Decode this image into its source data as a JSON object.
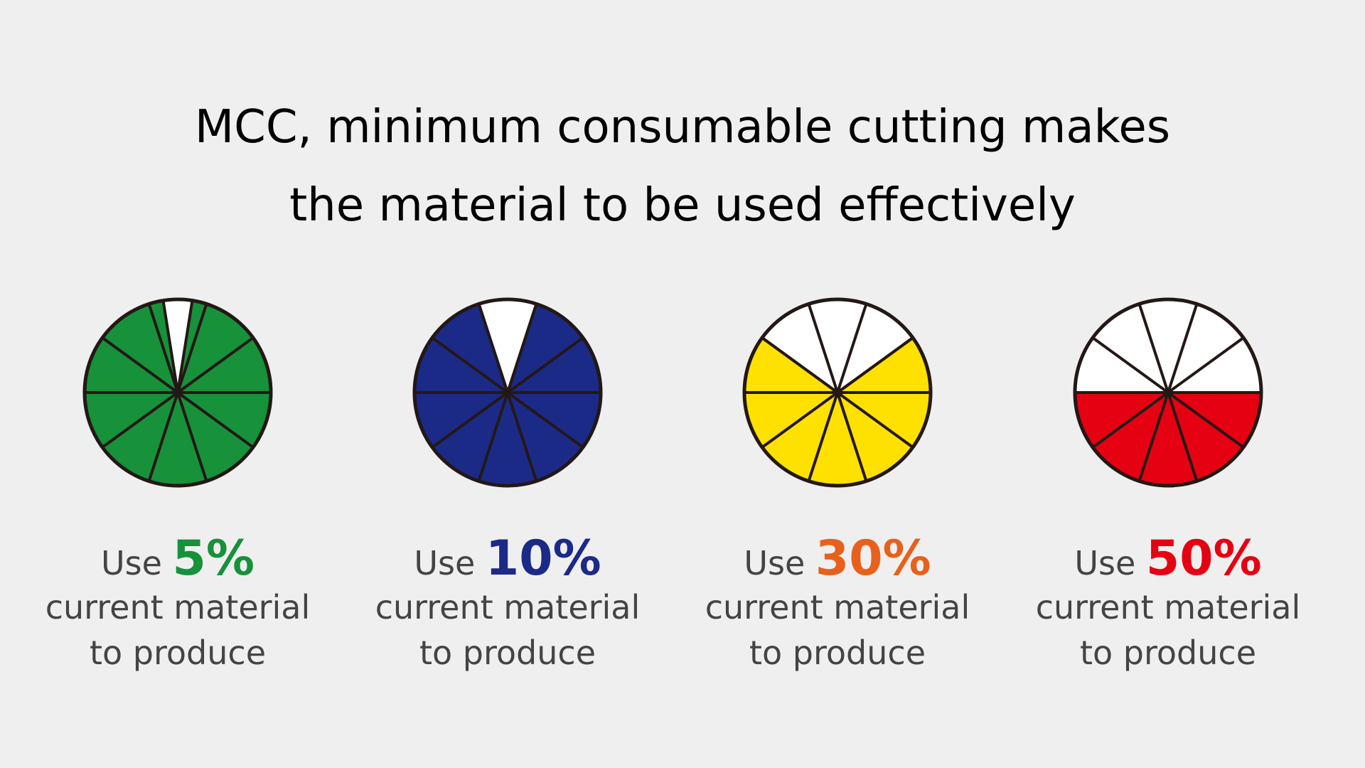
{
  "title": [
    "MCC, minimum consumable cutting makes",
    "the material to be used effectively"
  ],
  "items": [
    {
      "prefix": "Use",
      "value": 5,
      "value_label": "5%",
      "lines": [
        "current material",
        "to produce"
      ],
      "fill": "#17913a",
      "label_color": "#17913a"
    },
    {
      "prefix": "Use",
      "value": 10,
      "value_label": "10%",
      "lines": [
        "current material",
        "to produce"
      ],
      "fill": "#1b2a87",
      "label_color": "#1b2a87"
    },
    {
      "prefix": "Use",
      "value": 30,
      "value_label": "30%",
      "lines": [
        "current material",
        "to produce"
      ],
      "fill": "#ffe100",
      "label_color": "#e8601c"
    },
    {
      "prefix": "Use",
      "value": 50,
      "value_label": "50%",
      "lines": [
        "current material",
        "to produce"
      ],
      "fill": "#e50012",
      "label_color": "#e50012"
    }
  ]
}
